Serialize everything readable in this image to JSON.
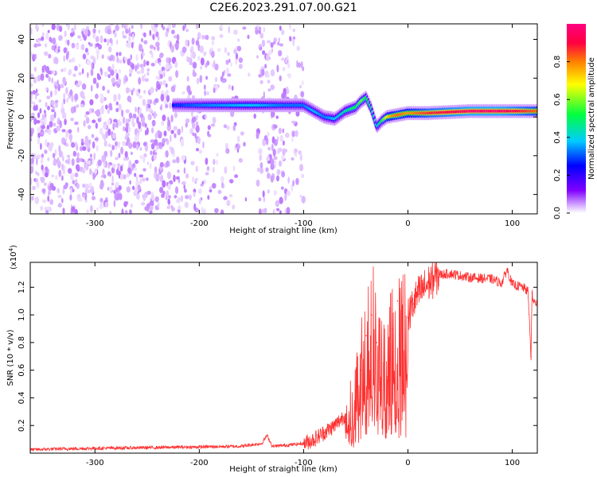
{
  "figure_title": "C2E6.2023.291.07.00.G21",
  "chart_data": [
    {
      "type": "heatmap",
      "xlabel": "Height of straight line (km)",
      "ylabel": "Frequency (Hz)",
      "xlim": [
        -362,
        124
      ],
      "ylim": [
        -50,
        48
      ],
      "x_ticks": [
        -300,
        -200,
        -100,
        0,
        100
      ],
      "y_ticks": [
        -40,
        -20,
        0,
        20,
        40
      ],
      "colorbar": {
        "label": "Normalized spectral amplitude",
        "range": [
          0,
          1
        ],
        "ticks": [
          "0.0",
          "0.2",
          "0.4",
          "0.6",
          "0.8"
        ],
        "colormap": [
          "#ffffff",
          "#cc99ff",
          "#8000ff",
          "#0000ff",
          "#00ccff",
          "#00ff40",
          "#ffff00",
          "#ff8000",
          "#ff0040",
          "#ff0080"
        ]
      },
      "ridge": {
        "description_points_x_km": [
          -225,
          -200,
          -150,
          -120,
          -100,
          -90,
          -80,
          -70,
          -60,
          -50,
          -45,
          -40,
          -35,
          -30,
          -25,
          -20,
          -10,
          0,
          20,
          60,
          90,
          124
        ],
        "frequency_hz": [
          6,
          6,
          6,
          6,
          6,
          3,
          0,
          -1,
          3,
          5,
          8,
          10,
          4,
          -5,
          -2,
          0,
          1,
          2,
          2,
          3,
          3,
          3
        ],
        "amplitude": [
          0.35,
          0.4,
          0.45,
          0.4,
          0.4,
          0.45,
          0.4,
          0.45,
          0.5,
          0.55,
          0.6,
          0.55,
          0.5,
          0.45,
          0.55,
          0.7,
          0.8,
          0.75,
          0.85,
          0.95,
          0.95,
          0.8
        ]
      }
    },
    {
      "type": "line",
      "xlabel": "Height of straight line (km)",
      "ylabel": "SNR (10 * v/v)",
      "y_multiplier": "(x10",
      "y_multiplier_exp": "4",
      "y_multiplier_close": ")",
      "xlim": [
        -362,
        124
      ],
      "ylim": [
        0,
        13800
      ],
      "x_ticks": [
        -300,
        -200,
        -100,
        0,
        100
      ],
      "y_ticks": [
        2000,
        4000,
        6000,
        8000,
        10000,
        12000
      ],
      "y_tick_labels": [
        "0.2",
        "0.4",
        "0.6",
        "0.8",
        "1.0",
        "1.2"
      ],
      "series_color": "#ff3030",
      "x": [
        -362,
        -340,
        -300,
        -250,
        -200,
        -160,
        -140,
        -135,
        -130,
        -120,
        -100,
        -90,
        -80,
        -70,
        -60,
        -50,
        -45,
        -40,
        -35,
        -30,
        -25,
        -20,
        -15,
        -10,
        -5,
        0,
        5,
        10,
        20,
        30,
        40,
        60,
        80,
        90,
        95,
        100,
        110,
        115,
        118,
        119,
        120,
        124
      ],
      "y": [
        250,
        300,
        350,
        400,
        450,
        500,
        700,
        1300,
        500,
        550,
        700,
        1000,
        1500,
        2000,
        2800,
        4500,
        6000,
        8500,
        10000,
        8000,
        6500,
        5500,
        9000,
        11000,
        10500,
        9800,
        10800,
        11500,
        12300,
        12900,
        13000,
        12700,
        12600,
        12300,
        13300,
        12200,
        12000,
        11700,
        7000,
        11600,
        11000,
        10800
      ]
    }
  ]
}
